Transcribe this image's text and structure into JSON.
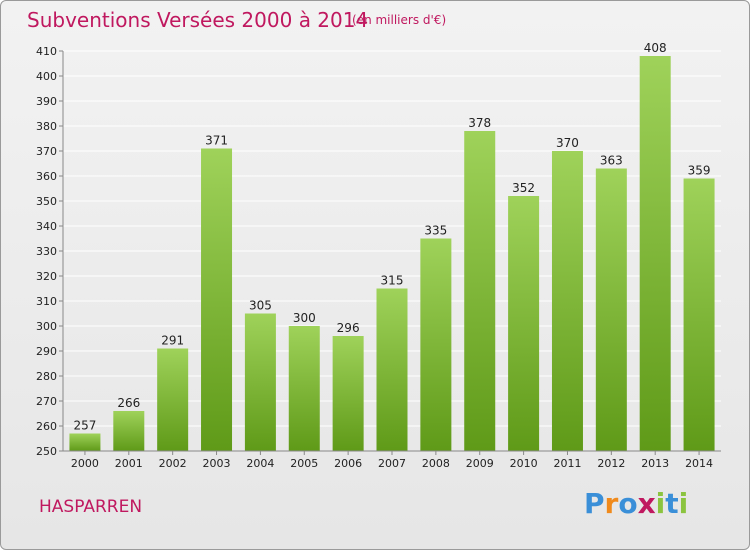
{
  "header": {
    "title": "Subventions Versées 2000 à 2014",
    "subtitle": "(en milliers d'€)"
  },
  "footer": {
    "location": "HASPARREN",
    "logo_text": "Proxiti"
  },
  "colors": {
    "title": "#c0185f",
    "bar_top": "#9fd25a",
    "bar_bottom": "#5f9a18",
    "grid": "#ffffff",
    "axis_text": "#222222"
  },
  "chart_data": {
    "type": "bar",
    "title": "Subventions Versées 2000 à 2014",
    "subtitle": "(en milliers d'€)",
    "categories": [
      "2000",
      "2001",
      "2002",
      "2003",
      "2004",
      "2005",
      "2006",
      "2007",
      "2008",
      "2009",
      "2010",
      "2011",
      "2012",
      "2013",
      "2014"
    ],
    "values": [
      257,
      266,
      291,
      371,
      305,
      300,
      296,
      315,
      335,
      378,
      352,
      370,
      363,
      408,
      359
    ],
    "ylim": [
      250,
      410
    ],
    "yticks": [
      250,
      260,
      270,
      280,
      290,
      300,
      310,
      320,
      330,
      340,
      350,
      360,
      370,
      380,
      390,
      400,
      410
    ],
    "grid": true,
    "data_labels": true
  }
}
